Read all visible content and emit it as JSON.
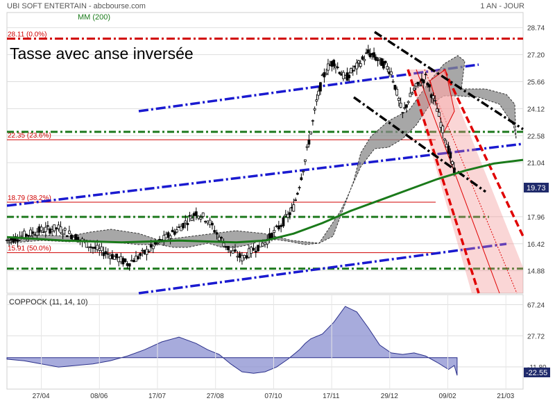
{
  "header": {
    "left": "UBI SOFT ENTERTAIN - abcbourse.com",
    "right": "1 AN - JOUR"
  },
  "legend_ma": "MM (200)",
  "pattern_title": "Tasse avec anse inversée",
  "coppock_title": "COPPOCK (11, 14, 10)",
  "colors": {
    "candle": "#000000",
    "ma200": "#1a7a1a",
    "cloud": "#8a8a8a",
    "fib": "#d00000",
    "green_level": "#1f7a1f",
    "blue_channel": "#1a1ad0",
    "coppock": "#8a8fd0",
    "current_price_bg": "#1f2a6b"
  },
  "chart_data": [
    {
      "type": "line",
      "title": "UBI SOFT ENTERTAIN",
      "x_ticks": [
        "27/04",
        "08/06",
        "17/07",
        "27/08",
        "07/10",
        "17/11",
        "29/12",
        "09/02",
        "21/03"
      ],
      "y_ticks": [
        28.74,
        27.2,
        25.66,
        24.12,
        22.58,
        21.04,
        17.96,
        16.42,
        14.88
      ],
      "ylim": [
        13.6,
        29.6
      ],
      "current_price": "19.73",
      "fibonacci_levels": [
        {
          "label": "28.11  (0.0%)",
          "value": 28.11
        },
        {
          "label": "22.35  (23.6%)",
          "value": 22.35
        },
        {
          "label": "18.79  (38.2%)",
          "value": 18.79
        },
        {
          "label": "15.91  (50.0%)",
          "value": 15.91
        }
      ],
      "horizontal_support_levels": [
        22.8,
        17.95,
        15.0
      ],
      "series": [
        {
          "name": "MM (200)",
          "x": [
            0,
            10,
            20,
            30,
            40,
            45,
            50,
            55,
            60,
            65,
            70,
            75,
            80,
            85,
            90
          ],
          "values": [
            16.8,
            16.6,
            16.5,
            16.6,
            16.5,
            16.6,
            17.0,
            17.6,
            18.3,
            18.9,
            19.5,
            20.1,
            20.6,
            21.0,
            21.2
          ]
        }
      ],
      "price_path": [
        [
          0,
          16.6
        ],
        [
          3,
          16.9
        ],
        [
          6,
          17.2
        ],
        [
          9,
          17.3
        ],
        [
          12,
          16.8
        ],
        [
          15,
          16.2
        ],
        [
          18,
          15.8
        ],
        [
          21,
          15.3
        ],
        [
          24,
          15.9
        ],
        [
          27,
          16.6
        ],
        [
          30,
          17.3
        ],
        [
          33,
          18.2
        ],
        [
          35,
          17.8
        ],
        [
          37,
          16.8
        ],
        [
          39,
          16.0
        ],
        [
          41,
          15.6
        ],
        [
          43,
          16.1
        ],
        [
          45,
          16.5
        ],
        [
          47,
          17.2
        ],
        [
          49,
          18.0
        ],
        [
          50,
          18.5
        ],
        [
          51,
          19.8
        ],
        [
          52,
          21.2
        ],
        [
          53,
          22.8
        ],
        [
          54,
          24.5
        ],
        [
          55,
          25.8
        ],
        [
          56,
          26.5
        ],
        [
          57,
          26.8
        ],
        [
          58,
          26.3
        ],
        [
          59,
          25.8
        ],
        [
          60,
          26.2
        ],
        [
          61,
          26.5
        ],
        [
          62,
          26.9
        ],
        [
          63,
          27.3
        ],
        [
          64,
          27.1
        ],
        [
          65,
          26.8
        ],
        [
          66,
          26.6
        ],
        [
          67,
          26.2
        ],
        [
          68,
          25.0
        ],
        [
          69,
          23.8
        ],
        [
          70,
          24.6
        ],
        [
          71,
          25.2
        ],
        [
          72,
          25.6
        ],
        [
          73,
          25.9
        ],
        [
          74,
          25.0
        ],
        [
          75,
          24.1
        ],
        [
          76,
          22.9
        ],
        [
          77,
          21.8
        ],
        [
          78,
          20.5
        ],
        [
          78.5,
          19.73
        ]
      ]
    },
    {
      "type": "area",
      "title": "COPPOCK (11, 14, 10)",
      "y_ticks": [
        67.24,
        27.72,
        -11.8
      ],
      "ylim": [
        -40,
        80
      ],
      "current_value": "-22.55",
      "x": [
        0,
        3,
        6,
        9,
        12,
        15,
        18,
        21,
        24,
        27,
        30,
        33,
        35,
        37,
        39,
        41,
        43,
        45,
        47,
        49,
        51,
        52,
        53,
        55,
        57,
        59,
        61,
        63,
        65,
        67,
        69,
        71,
        73,
        75,
        77,
        78,
        78.5
      ],
      "values": [
        -2,
        -4,
        -8,
        -12,
        -10,
        -8,
        -4,
        2,
        10,
        20,
        26,
        18,
        10,
        4,
        -8,
        -18,
        -20,
        -18,
        -12,
        -2,
        10,
        18,
        24,
        30,
        45,
        65,
        58,
        38,
        16,
        6,
        4,
        6,
        2,
        -6,
        -15,
        -10,
        -22.55
      ]
    }
  ]
}
